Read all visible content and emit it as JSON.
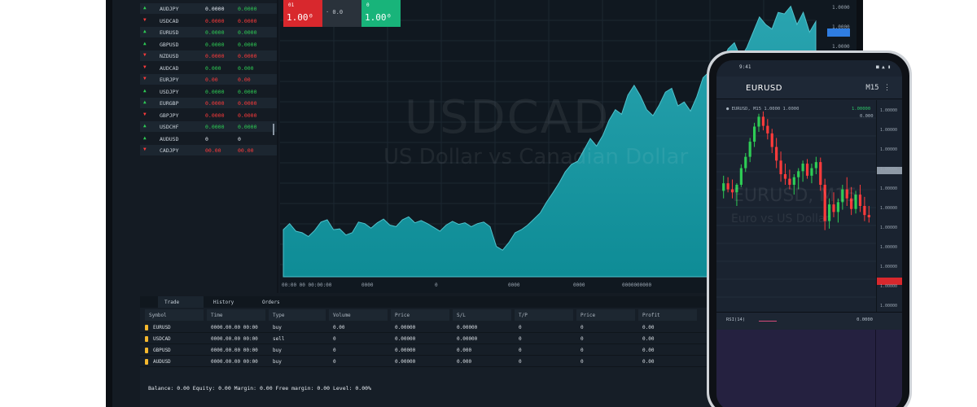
{
  "desktop": {
    "watchlist": [
      {
        "dir": "up",
        "symbol": "AUDJPY",
        "bid": "0.0000",
        "ask": "0.0000",
        "bid_tone": "nt",
        "ask_tone": "up"
      },
      {
        "dir": "dn",
        "symbol": "USDCAD",
        "bid": "0.0000",
        "ask": "0.0000",
        "bid_tone": "dn",
        "ask_tone": "dn"
      },
      {
        "dir": "up",
        "symbol": "EURUSD",
        "bid": "0.0000",
        "ask": "0.0000",
        "bid_tone": "up",
        "ask_tone": "up"
      },
      {
        "dir": "up",
        "symbol": "GBPUSD",
        "bid": "0.0000",
        "ask": "0.0000",
        "bid_tone": "up",
        "ask_tone": "up"
      },
      {
        "dir": "dn",
        "symbol": "NZDUSD",
        "bid": "0.0000",
        "ask": "0.0000",
        "bid_tone": "dn",
        "ask_tone": "dn"
      },
      {
        "dir": "dn",
        "symbol": "AUDCAD",
        "bid": "0.000",
        "ask": "0.000",
        "bid_tone": "up",
        "ask_tone": "up"
      },
      {
        "dir": "dn",
        "symbol": "EURJPY",
        "bid": "0.00",
        "ask": "0.00",
        "bid_tone": "dn",
        "ask_tone": "dn"
      },
      {
        "dir": "up",
        "symbol": "USDJPY",
        "bid": "0.0000",
        "ask": "0.0000",
        "bid_tone": "up",
        "ask_tone": "up"
      },
      {
        "dir": "up",
        "symbol": "EURGBP",
        "bid": "0.0000",
        "ask": "0.0000",
        "bid_tone": "dn",
        "ask_tone": "dn"
      },
      {
        "dir": "dn",
        "symbol": "GBPJPY",
        "bid": "0.0000",
        "ask": "0.0000",
        "bid_tone": "dn",
        "ask_tone": "dn"
      },
      {
        "dir": "up",
        "symbol": "USDCHF",
        "bid": "0.0000",
        "ask": "0.0000",
        "bid_tone": "up",
        "ask_tone": "up"
      },
      {
        "dir": "up",
        "symbol": "AUDUSD",
        "bid": "0",
        "ask": "0",
        "bid_tone": "nt",
        "ask_tone": "nt"
      },
      {
        "dir": "dn",
        "symbol": "CADJPY",
        "bid": "00.00",
        "ask": "00.00",
        "bid_tone": "dn",
        "ask_tone": "dn"
      }
    ],
    "trade": {
      "sell_label": "01",
      "sell_price": "1.00⁰",
      "spread": "· 0.0",
      "buy_label": "0",
      "buy_price": "1.00⁰"
    },
    "chart": {
      "symbol_watermark": "USDCAD",
      "desc_watermark": "US Dollar vs Canadian Dollar",
      "time_labels": [
        "00:00 00 00:00:00",
        "0000",
        "0",
        "0000",
        "0000",
        "0000000000"
      ],
      "price_labels": [
        "1.0000",
        "1.0000",
        "1.0000",
        "1.0000",
        "1.0000",
        "1.0000",
        "1.0000",
        "1.0000",
        "1.0000",
        "1.0000",
        "1.0000",
        "1.0000",
        "1.0000",
        "1.0000"
      ],
      "area_fill": "#0e8c96",
      "area_top": "#2aa4b0",
      "area_series": [
        62,
        70,
        60,
        58,
        53,
        61,
        72,
        75,
        62,
        63,
        55,
        58,
        72,
        70,
        64,
        71,
        76,
        68,
        66,
        75,
        79,
        71,
        74,
        70,
        65,
        60,
        68,
        73,
        69,
        71,
        66,
        70,
        72,
        66,
        40,
        35,
        45,
        58,
        62,
        68,
        76,
        84,
        98,
        110,
        123,
        138,
        148,
        152,
        167,
        182,
        172,
        186,
        206,
        220,
        214,
        239,
        252,
        238,
        220,
        212,
        226,
        243,
        248,
        225,
        230,
        218,
        237,
        262,
        270,
        250,
        283,
        300,
        308,
        288,
        302,
        322,
        342,
        332,
        326,
        348,
        346,
        356,
        332,
        348,
        322,
        336
      ]
    },
    "positions": {
      "tabs": [
        "Trade",
        "History",
        "Orders"
      ],
      "columns": [
        "Symbol",
        "Time",
        "Type",
        "Volume",
        "Price",
        "S/L",
        "T/P",
        "Price",
        "Profit"
      ],
      "rows": [
        {
          "symbol": "EURUSD",
          "time": "0000.00.00 00:00",
          "type": "buy",
          "volume": "0.00",
          "price": "0.00000",
          "sl": "0.00000",
          "tp": "0",
          "cur": "0",
          "profit": "0.00"
        },
        {
          "symbol": "USDCAD",
          "time": "0000.00.00 00:00",
          "type": "sell",
          "volume": "0",
          "price": "0.00000",
          "sl": "0.00000",
          "tp": "0",
          "cur": "0",
          "profit": "0.00"
        },
        {
          "symbol": "GBPUSD",
          "time": "0000.00.00 00:00",
          "type": "buy",
          "volume": "0",
          "price": "0.00000",
          "sl": "0.000",
          "tp": "0",
          "cur": "0",
          "profit": "0.00"
        },
        {
          "symbol": "AUDUSD",
          "time": "0000.00.00 00:00",
          "type": "buy",
          "volume": "0",
          "price": "0.00000",
          "sl": "0.000",
          "tp": "0",
          "cur": "0",
          "profit": "0.00"
        }
      ],
      "footer": "Balance: 0.00 Equity: 0.00 Margin: 0.00 Free margin: 0.00 Level: 0.00%"
    }
  },
  "phone": {
    "status_time": "9:41",
    "status_icons": "■ ▲ ▮",
    "title": "EURUSD",
    "menu": "M15 ⋮",
    "info_left": "● EURUSD, M15 1.0000 1.0000",
    "info_right": "1.00000",
    "info_right2": "0.000",
    "watermark1": "EURUSD, M15",
    "watermark2": "Euro vs US Dollar",
    "y_labels": [
      "1.00000",
      "1.00000",
      "1.00000",
      "1.00000",
      "1.00000",
      "1.00000",
      "1.00000",
      "1.00000",
      "1.00000",
      "1.00000",
      "1.00000",
      "1.00000"
    ],
    "indicator_label": "RSI(14)",
    "indicator_right": "0.0000",
    "candle_up": "#2ecc55",
    "candle_dn": "#ff3b3b",
    "candles": [
      [
        160,
        180,
        150,
        170
      ],
      [
        170,
        178,
        158,
        162
      ],
      [
        162,
        175,
        150,
        158
      ],
      [
        158,
        170,
        140,
        168
      ],
      [
        168,
        195,
        165,
        190
      ],
      [
        190,
        210,
        185,
        205
      ],
      [
        205,
        230,
        198,
        225
      ],
      [
        225,
        250,
        218,
        245
      ],
      [
        245,
        262,
        238,
        258
      ],
      [
        258,
        265,
        240,
        246
      ],
      [
        246,
        255,
        228,
        236
      ],
      [
        236,
        242,
        210,
        218
      ],
      [
        218,
        230,
        190,
        200
      ],
      [
        200,
        212,
        172,
        182
      ],
      [
        182,
        196,
        168,
        176
      ],
      [
        176,
        188,
        162,
        168
      ],
      [
        168,
        182,
        155,
        178
      ],
      [
        178,
        190,
        162,
        186
      ],
      [
        186,
        200,
        172,
        196
      ],
      [
        196,
        202,
        176,
        180
      ],
      [
        180,
        196,
        170,
        190
      ],
      [
        190,
        205,
        182,
        198
      ],
      [
        198,
        204,
        160,
        168
      ],
      [
        168,
        176,
        108,
        120
      ],
      [
        120,
        150,
        110,
        142
      ],
      [
        142,
        158,
        125,
        132
      ],
      [
        132,
        150,
        118,
        145
      ],
      [
        145,
        168,
        135,
        162
      ],
      [
        162,
        178,
        140,
        150
      ],
      [
        150,
        165,
        128,
        136
      ],
      [
        136,
        160,
        130,
        155
      ],
      [
        155,
        168,
        132,
        140
      ],
      [
        140,
        152,
        120,
        128
      ],
      [
        128,
        140,
        118,
        125
      ]
    ]
  }
}
